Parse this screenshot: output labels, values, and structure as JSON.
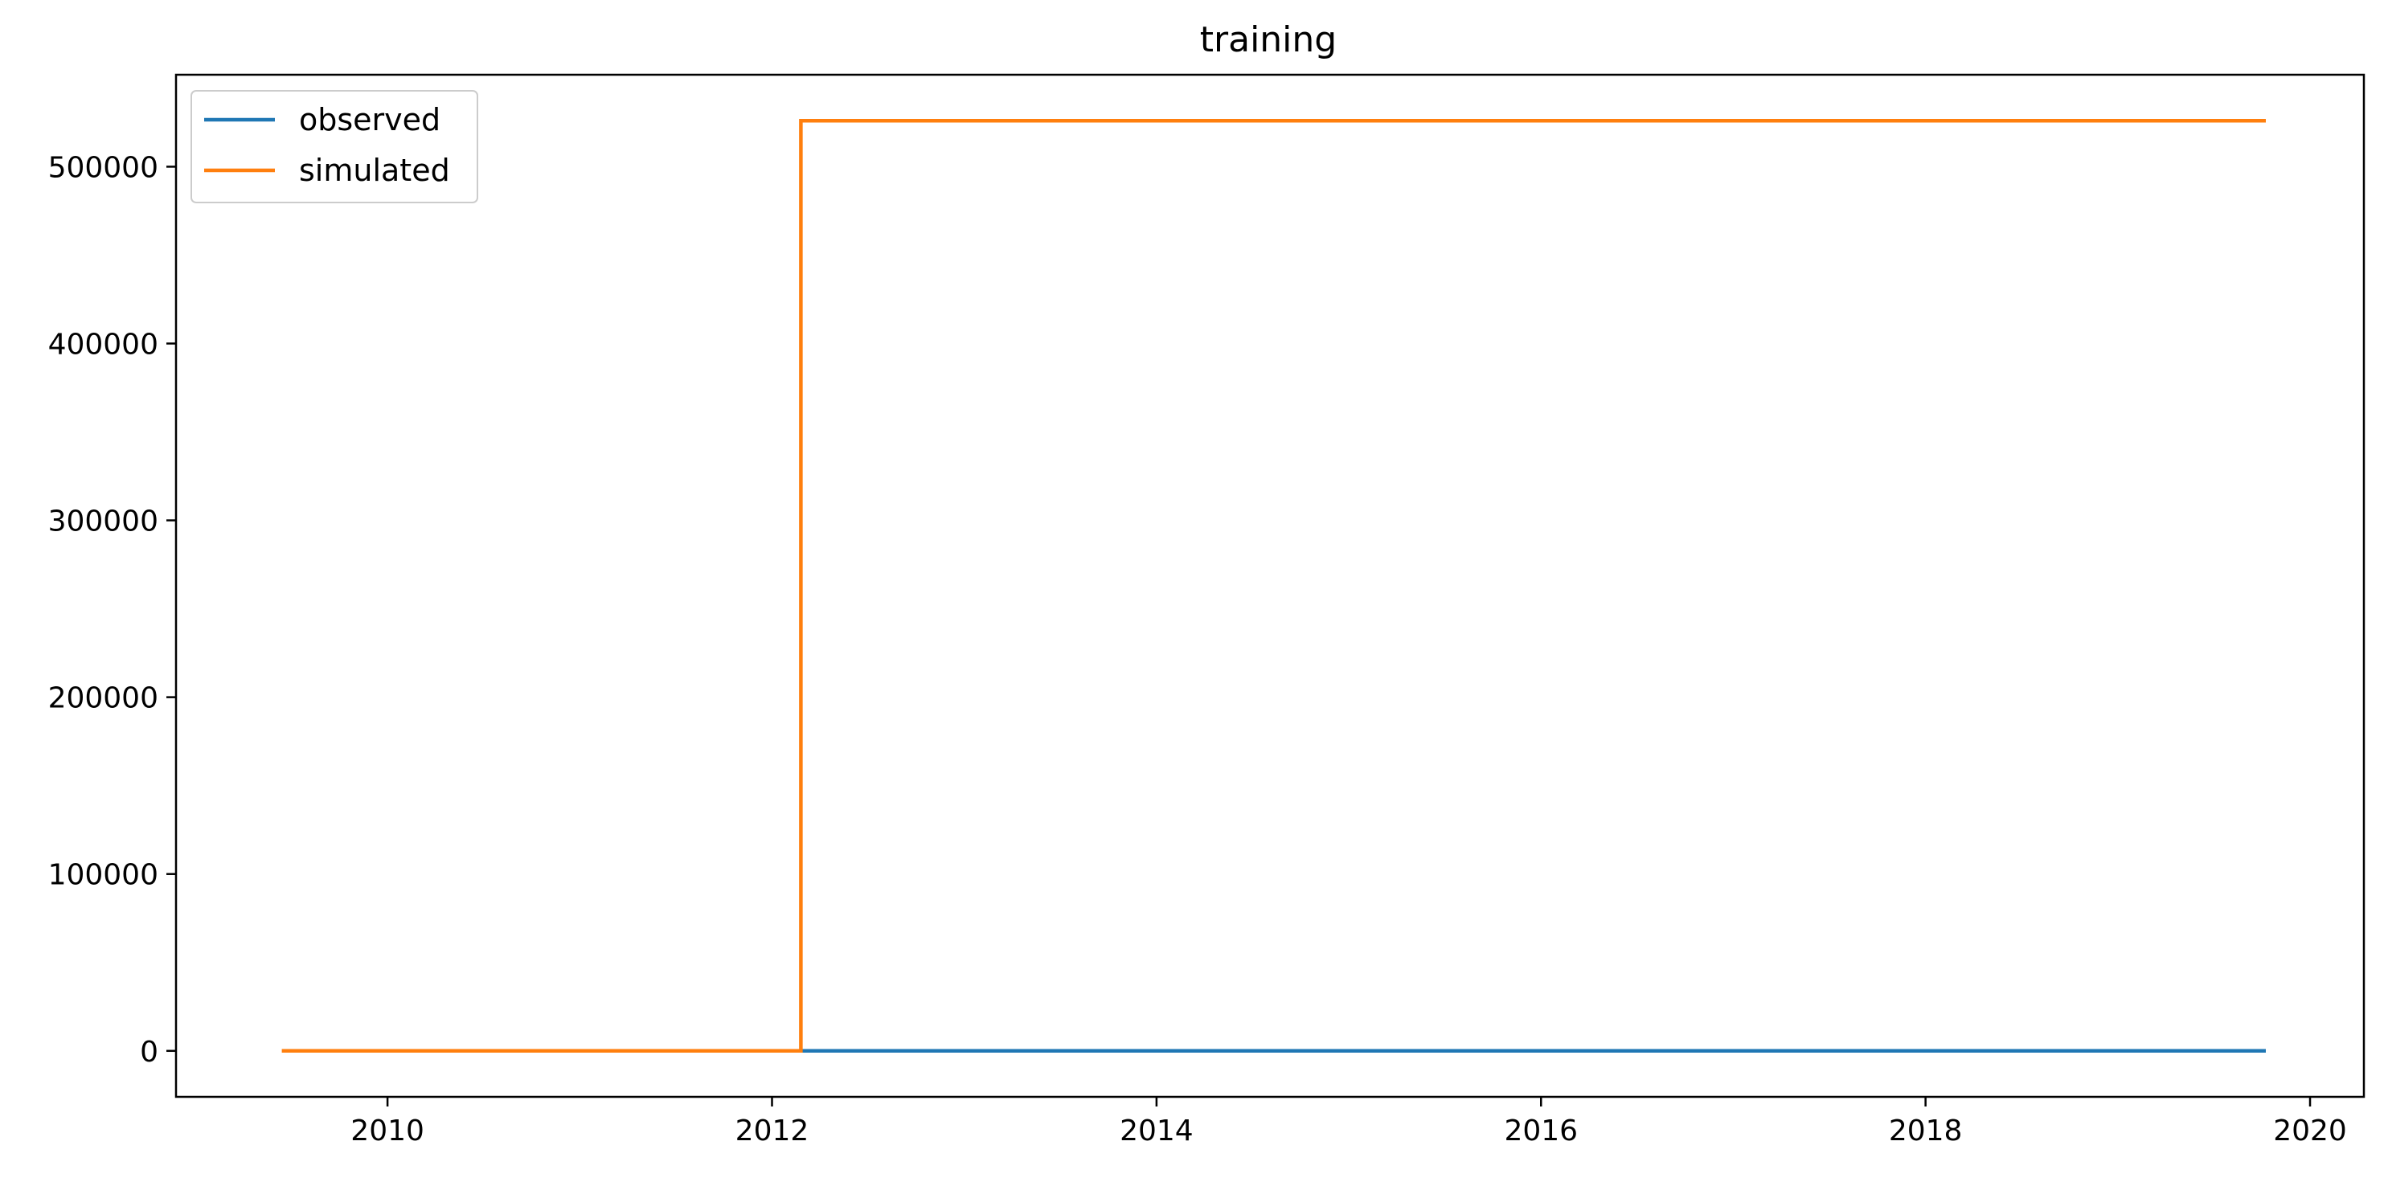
{
  "chart_data": {
    "type": "line",
    "title": "training",
    "xlabel": "",
    "ylabel": "",
    "xlim": [
      2008.9,
      2020.28
    ],
    "ylim": [
      -26000,
      552000
    ],
    "x_ticks": [
      2010,
      2012,
      2014,
      2016,
      2018,
      2020
    ],
    "y_ticks": [
      0,
      100000,
      200000,
      300000,
      400000,
      500000
    ],
    "grid": false,
    "legend_position": "top-left",
    "series": [
      {
        "name": "observed",
        "color": "#1f77b4",
        "x": [
          2012.15,
          2019.77
        ],
        "y": [
          0,
          0
        ]
      },
      {
        "name": "simulated",
        "color": "#ff7f0e",
        "x": [
          2009.45,
          2012.15,
          2012.15,
          2019.77
        ],
        "y": [
          0,
          0,
          526000,
          526000
        ]
      }
    ]
  }
}
